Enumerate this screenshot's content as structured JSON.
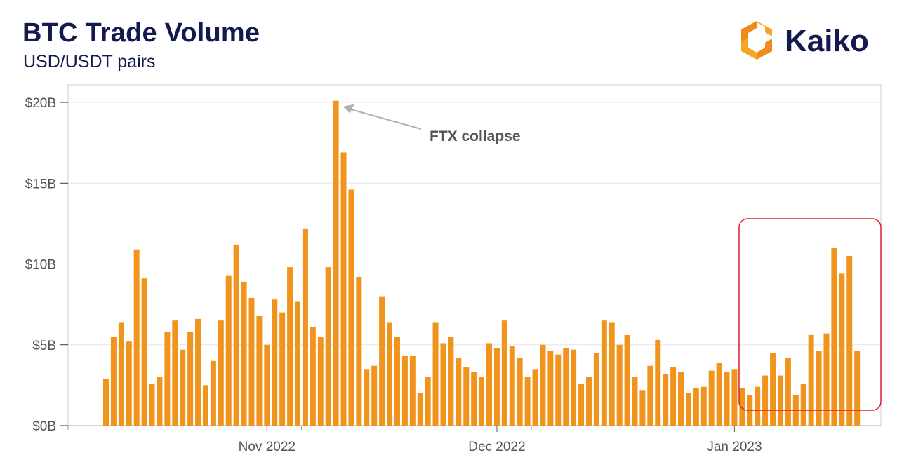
{
  "header": {
    "title": "BTC Trade Volume",
    "subtitle": "USD/USDT pairs",
    "brand": "Kaiko"
  },
  "colors": {
    "bar": "#f0941e",
    "title": "#141a4f",
    "highlight_box": "#d9202a",
    "grid": "#e6e6e6",
    "axis": "#aaaaaa",
    "annotation": "#555555"
  },
  "chart_data": {
    "type": "bar",
    "title": "BTC Trade Volume",
    "subtitle": "USD/USDT pairs",
    "xlabel": "",
    "ylabel": "",
    "ylim": [
      0,
      20
    ],
    "y_unit": "USD billions",
    "y_ticks": [
      {
        "value": 0,
        "label": "$0B"
      },
      {
        "value": 5,
        "label": "$5B"
      },
      {
        "value": 10,
        "label": "$10B"
      },
      {
        "value": 15,
        "label": "$15B"
      },
      {
        "value": 20,
        "label": "$20B"
      }
    ],
    "x_ticks": [
      {
        "index": 21,
        "label": "Nov 2022"
      },
      {
        "index": 51,
        "label": "Dec 2022"
      },
      {
        "index": 82,
        "label": "Jan 2023"
      }
    ],
    "series": [
      {
        "name": "BTC Trade Volume",
        "values": [
          2.9,
          5.5,
          6.4,
          5.2,
          10.9,
          9.1,
          2.6,
          3.0,
          5.8,
          6.5,
          4.7,
          5.8,
          6.6,
          2.5,
          4.0,
          6.5,
          9.3,
          11.2,
          8.9,
          7.9,
          6.8,
          5.0,
          7.8,
          7.0,
          9.8,
          7.7,
          12.2,
          6.1,
          5.5,
          9.8,
          20.1,
          16.9,
          14.6,
          9.2,
          3.5,
          3.7,
          8.0,
          6.4,
          5.5,
          4.3,
          4.3,
          2.0,
          3.0,
          6.4,
          5.1,
          5.5,
          4.2,
          3.6,
          3.3,
          3.0,
          5.1,
          4.8,
          6.5,
          4.9,
          4.2,
          3.0,
          3.5,
          5.0,
          4.6,
          4.4,
          4.8,
          4.7,
          2.6,
          3.0,
          4.5,
          6.5,
          6.4,
          5.0,
          5.6,
          3.0,
          2.2,
          3.7,
          5.3,
          3.2,
          3.6,
          3.3,
          2.0,
          2.3,
          2.4,
          3.4,
          3.9,
          3.3,
          3.5,
          2.3,
          1.9,
          2.4,
          3.1,
          4.5,
          3.1,
          4.2,
          1.9,
          2.6,
          5.6,
          4.6,
          5.7,
          11.0,
          9.4,
          10.5,
          4.6
        ]
      }
    ],
    "annotations": [
      {
        "text": "FTX collapse",
        "target_index": 30
      }
    ],
    "highlight": {
      "from_index": 84,
      "to_index": 97
    }
  }
}
